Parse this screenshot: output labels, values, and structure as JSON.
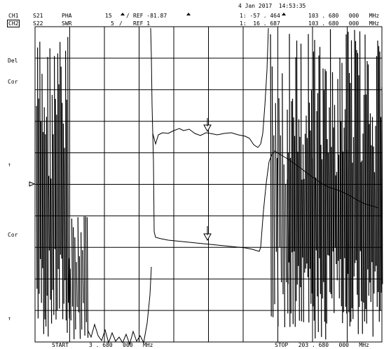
{
  "header": {
    "datetime": "4 Jan 2017  14:53:35",
    "ch1": {
      "label": "CH1",
      "param": "S21",
      "format": "PHA",
      "scale": "15",
      "scale_sep": "/",
      "ref": "REF -81.87",
      "marker_readout": "1: -57 . 464",
      "marker_freq": "103 . 680   000   MHz"
    },
    "ch2": {
      "label": "CH2",
      "param": "S22",
      "format": "SWR",
      "scale": "5",
      "scale_sep": "/",
      "ref": "REF 1",
      "marker_readout": "1:  16 . 687",
      "marker_freq": "103 . 680   000   MHz"
    }
  },
  "left_annotations": {
    "del": "Del",
    "cor_top": "Cor",
    "arrow_1": "↑",
    "cor_bottom": "Cor",
    "arrow_2": "↑"
  },
  "footer": {
    "start": "START      3 . 680   000   MHz",
    "stop": "STOP   203 . 680   000   MHz"
  },
  "grid": {
    "divisions_x": 10,
    "divisions_y": 10
  }
}
